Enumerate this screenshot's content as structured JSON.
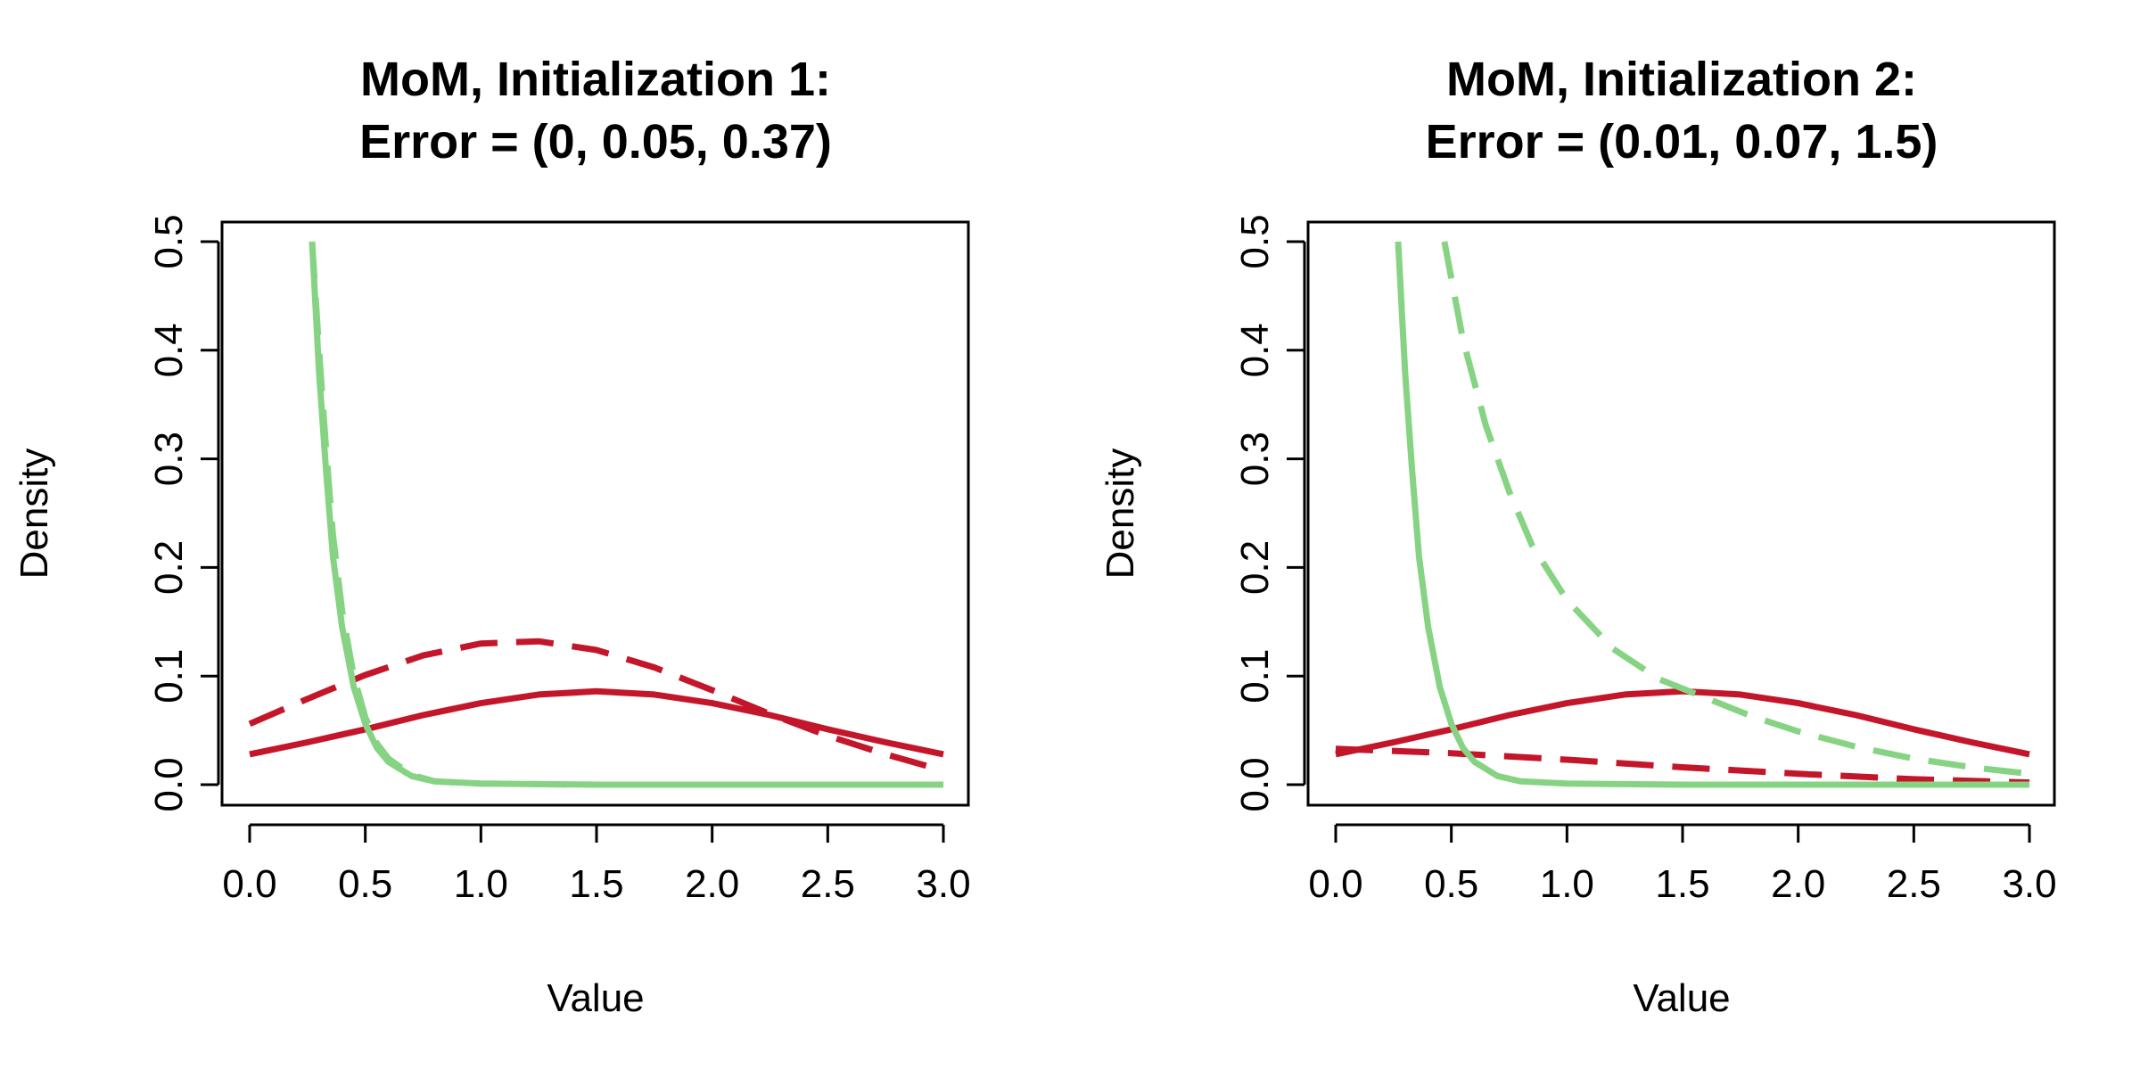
{
  "chart_data": [
    {
      "type": "line",
      "title_line1": "MoM, Initialization 1:",
      "title_line2": "Error = (0, 0.05, 0.37)",
      "xlabel": "Value",
      "ylabel": "Density",
      "xlim": [
        0,
        3
      ],
      "ylim": [
        0,
        0.5
      ],
      "x_ticks": [
        "0.0",
        "0.5",
        "1.0",
        "1.5",
        "2.0",
        "2.5",
        "3.0"
      ],
      "y_ticks": [
        "0.0",
        "0.1",
        "0.2",
        "0.3",
        "0.4",
        "0.5"
      ],
      "grid": false,
      "series": [
        {
          "color": "#c4162a",
          "dash": "solid",
          "x": [
            0,
            0.25,
            0.5,
            0.75,
            1.0,
            1.25,
            1.5,
            1.75,
            2.0,
            2.25,
            2.5,
            2.75,
            3.0
          ],
          "y": [
            0.028,
            0.039,
            0.051,
            0.064,
            0.075,
            0.083,
            0.086,
            0.083,
            0.075,
            0.064,
            0.051,
            0.039,
            0.028
          ]
        },
        {
          "color": "#c4162a",
          "dash": "dashed",
          "x": [
            0,
            0.25,
            0.5,
            0.75,
            1.0,
            1.25,
            1.5,
            1.75,
            2.0,
            2.25,
            2.5,
            2.75,
            3.0
          ],
          "y": [
            0.056,
            0.079,
            0.101,
            0.119,
            0.13,
            0.132,
            0.124,
            0.108,
            0.087,
            0.065,
            0.045,
            0.028,
            0.013
          ]
        },
        {
          "color": "#86d383",
          "dash": "solid",
          "x": [
            0.27,
            0.3,
            0.33,
            0.36,
            0.4,
            0.45,
            0.5,
            0.55,
            0.6,
            0.7,
            0.8,
            1.0,
            1.5,
            2.0,
            3.0
          ],
          "y": [
            0.5,
            0.38,
            0.29,
            0.21,
            0.145,
            0.09,
            0.056,
            0.034,
            0.021,
            0.008,
            0.003,
            0.001,
            0.0,
            0.0,
            0.0
          ]
        },
        {
          "color": "#86d383",
          "dash": "dashed",
          "x": [
            0.27,
            0.3,
            0.33,
            0.36,
            0.4,
            0.45,
            0.5,
            0.55,
            0.6,
            0.7,
            0.8,
            1.0,
            1.5,
            2.0,
            3.0
          ],
          "y": [
            0.5,
            0.4,
            0.31,
            0.23,
            0.16,
            0.1,
            0.062,
            0.038,
            0.024,
            0.009,
            0.003,
            0.001,
            0.0,
            0.0,
            0.0
          ]
        }
      ]
    },
    {
      "type": "line",
      "title_line1": "MoM, Initialization 2:",
      "title_line2": "Error = (0.01, 0.07, 1.5)",
      "xlabel": "Value",
      "ylabel": "Density",
      "xlim": [
        0,
        3
      ],
      "ylim": [
        0,
        0.5
      ],
      "x_ticks": [
        "0.0",
        "0.5",
        "1.0",
        "1.5",
        "2.0",
        "2.5",
        "3.0"
      ],
      "y_ticks": [
        "0.0",
        "0.1",
        "0.2",
        "0.3",
        "0.4",
        "0.5"
      ],
      "grid": false,
      "series": [
        {
          "color": "#c4162a",
          "dash": "solid",
          "x": [
            0,
            0.25,
            0.5,
            0.75,
            1.0,
            1.25,
            1.5,
            1.75,
            2.0,
            2.25,
            2.5,
            2.75,
            3.0
          ],
          "y": [
            0.028,
            0.039,
            0.051,
            0.064,
            0.075,
            0.083,
            0.086,
            0.083,
            0.075,
            0.064,
            0.051,
            0.039,
            0.028
          ]
        },
        {
          "color": "#c4162a",
          "dash": "dashed",
          "x": [
            0,
            0.5,
            1.0,
            1.5,
            2.0,
            2.5,
            3.0
          ],
          "y": [
            0.033,
            0.029,
            0.023,
            0.016,
            0.01,
            0.005,
            0.002
          ]
        },
        {
          "color": "#86d383",
          "dash": "solid",
          "x": [
            0.27,
            0.3,
            0.33,
            0.36,
            0.4,
            0.45,
            0.5,
            0.55,
            0.6,
            0.7,
            0.8,
            1.0,
            1.5,
            2.0,
            3.0
          ],
          "y": [
            0.5,
            0.38,
            0.29,
            0.21,
            0.145,
            0.09,
            0.056,
            0.034,
            0.021,
            0.008,
            0.003,
            0.001,
            0.0,
            0.0,
            0.0
          ]
        },
        {
          "color": "#86d383",
          "dash": "dashed",
          "x": [
            0.47,
            0.55,
            0.65,
            0.75,
            0.85,
            1.0,
            1.2,
            1.4,
            1.6,
            1.8,
            2.0,
            2.25,
            2.5,
            2.75,
            3.0
          ],
          "y": [
            0.5,
            0.41,
            0.33,
            0.27,
            0.22,
            0.17,
            0.125,
            0.097,
            0.08,
            0.063,
            0.049,
            0.035,
            0.024,
            0.016,
            0.01
          ]
        }
      ]
    }
  ]
}
